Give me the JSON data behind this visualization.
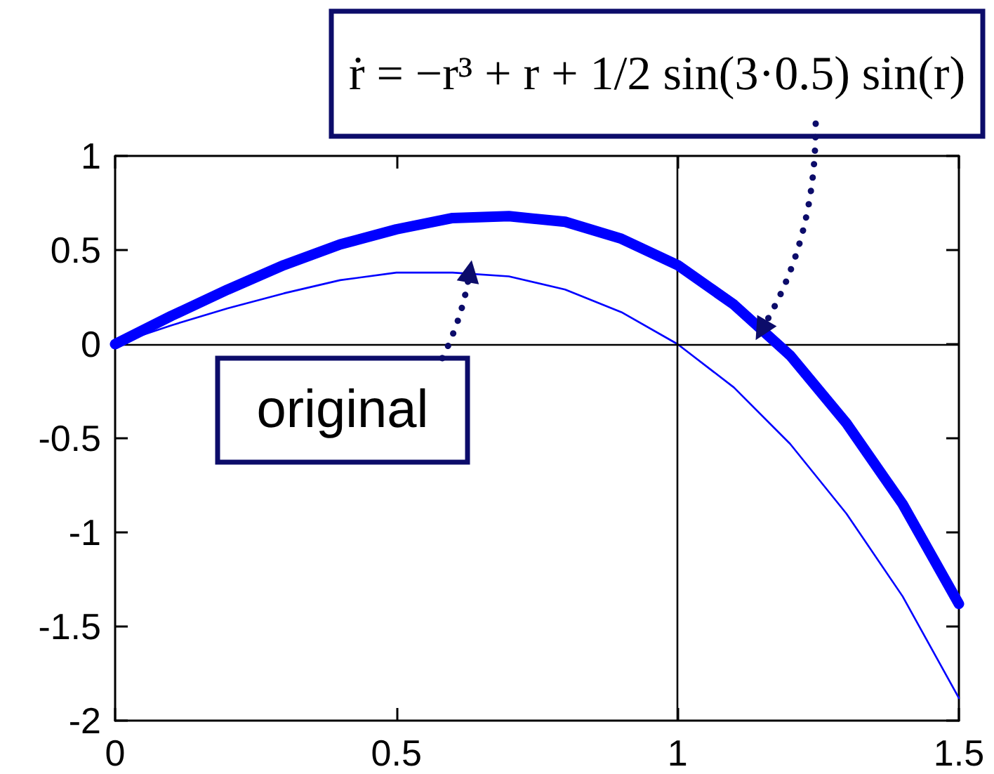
{
  "chart_data": {
    "type": "line",
    "xlim": [
      0,
      1.5
    ],
    "xticks": [
      0,
      0.5,
      1,
      1.5
    ],
    "ylim": [
      -2,
      1
    ],
    "yticks": [
      -2,
      -1.5,
      -1,
      -0.5,
      0,
      0.5,
      1
    ],
    "grid": false,
    "marker": "none",
    "line_style": "solid",
    "x": [
      0,
      0.1,
      0.2,
      0.3,
      0.4,
      0.5,
      0.6,
      0.7,
      0.8,
      0.9,
      1.0,
      1.1,
      1.2,
      1.3,
      1.4,
      1.5
    ],
    "series": [
      {
        "color": "#0000ff",
        "values": [
          0,
          0.15,
          0.29,
          0.42,
          0.53,
          0.61,
          0.67,
          0.68,
          0.65,
          0.56,
          0.42,
          0.21,
          -0.06,
          -0.42,
          -0.85,
          -1.38
        ]
      },
      {
        "color": "#0000ff",
        "values": [
          0,
          0.1,
          0.19,
          0.27,
          0.34,
          0.38,
          0.38,
          0.36,
          0.29,
          0.17,
          0,
          -0.23,
          -0.53,
          -0.9,
          -1.34,
          -1.88
        ]
      }
    ],
    "ref_lines": [
      {
        "axis": "x",
        "value": 1,
        "color": "#000000"
      },
      {
        "axis": "y",
        "value": 0,
        "color": "#000000"
      }
    ],
    "annotations": [
      {
        "text": "ṙ = −r³ + r + 1/2 sin(3·0.5) sin(r)",
        "x": 1.15,
        "y": 0.08
      },
      {
        "text": "original",
        "x": 0.63,
        "y": 0.38
      }
    ]
  }
}
